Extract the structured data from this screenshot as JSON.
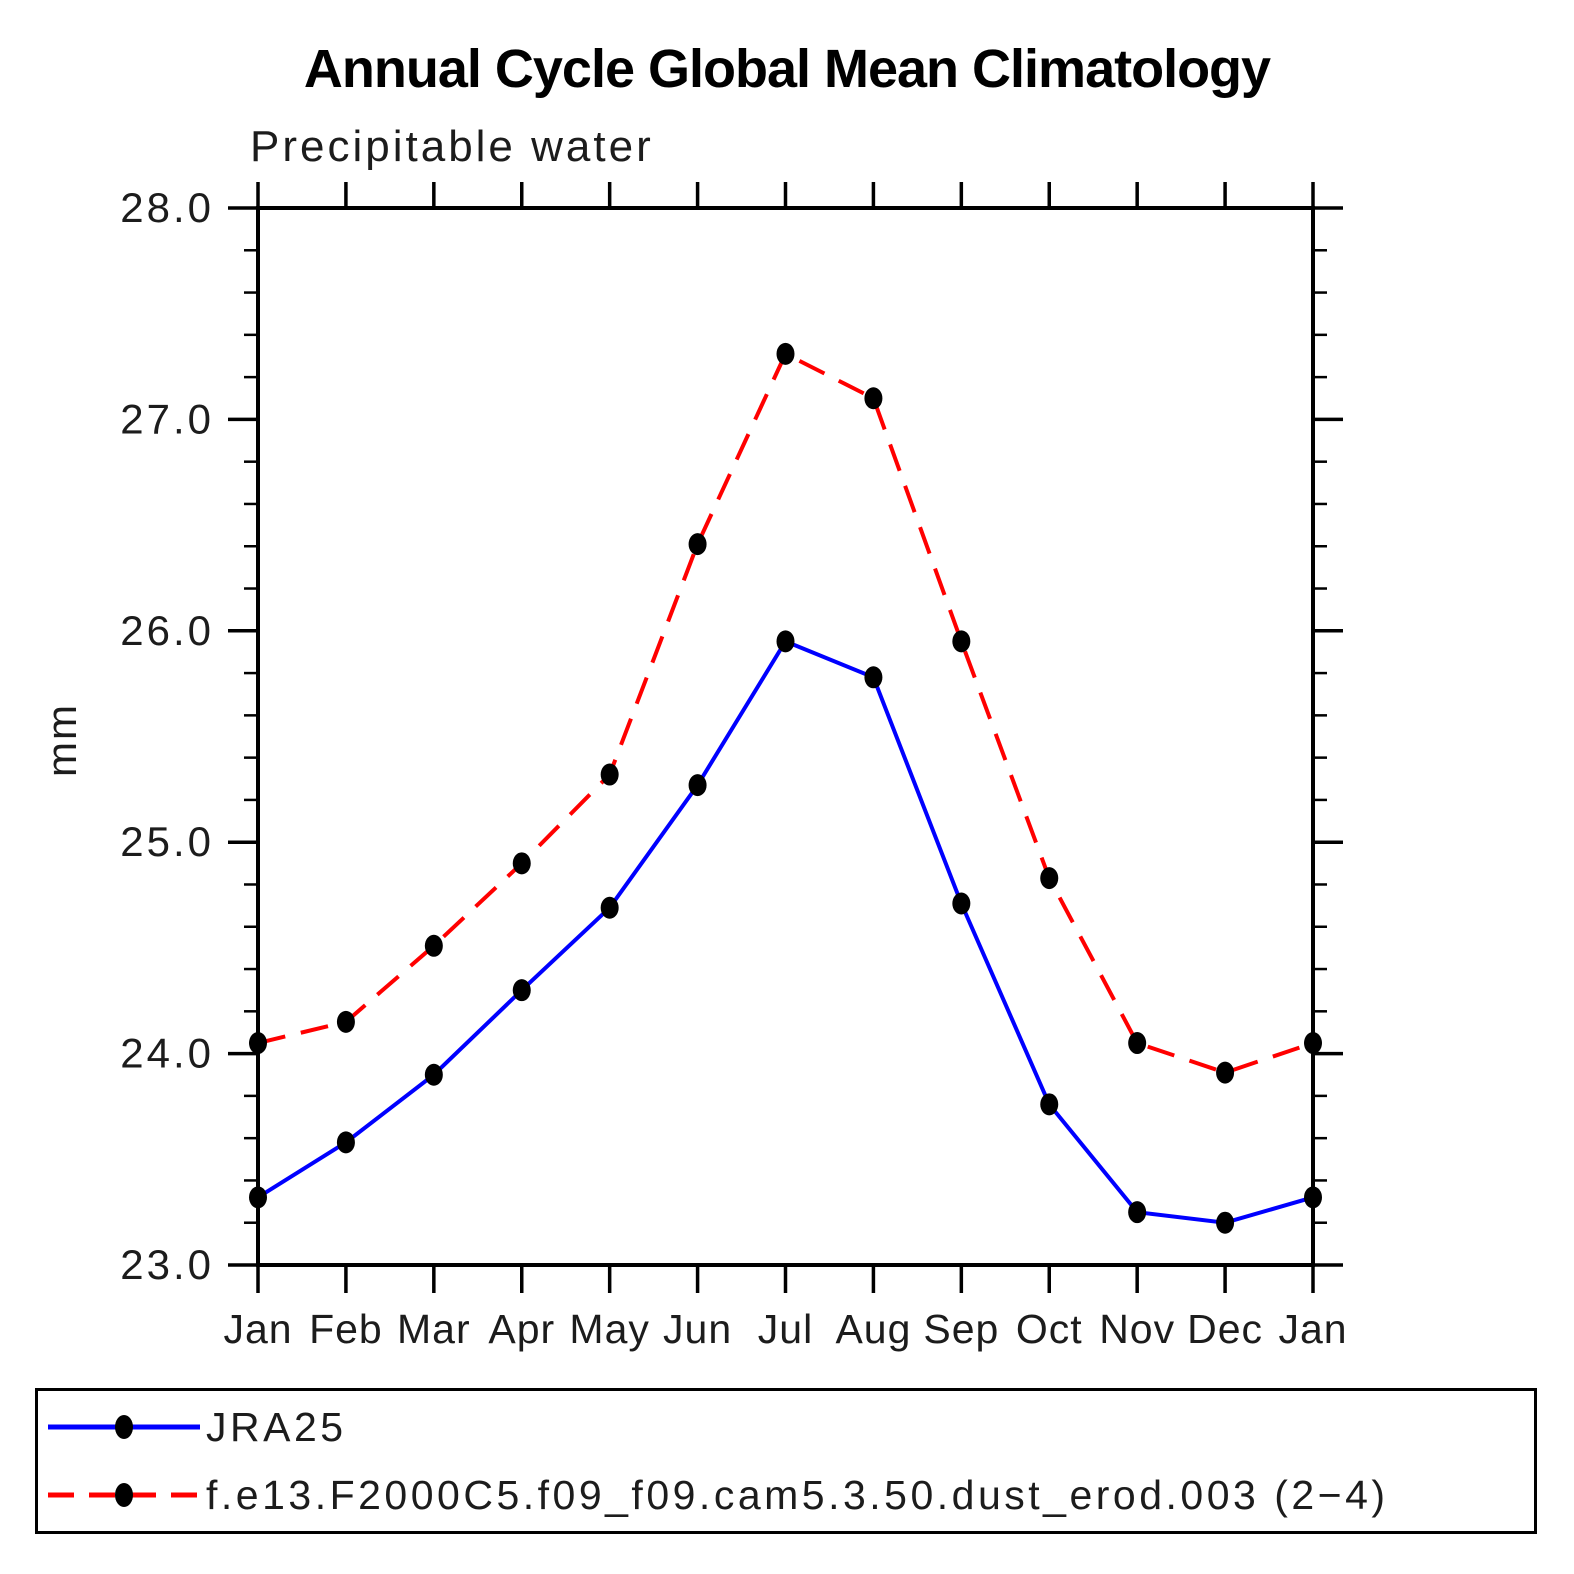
{
  "chart_data": {
    "type": "line",
    "title": "Annual Cycle Global Mean Climatology",
    "subtitle": "Precipitable water",
    "xlabel": "",
    "ylabel": "mm",
    "categories": [
      "Jan",
      "Feb",
      "Mar",
      "Apr",
      "May",
      "Jun",
      "Jul",
      "Aug",
      "Sep",
      "Oct",
      "Nov",
      "Dec",
      "Jan"
    ],
    "ylim": [
      23.0,
      28.0
    ],
    "ytick_major_step": 1.0,
    "ytick_minor_step": 0.2,
    "ytick_labels": [
      "23.0",
      "24.0",
      "25.0",
      "26.0",
      "27.0",
      "28.0"
    ],
    "grid": false,
    "legend_position": "bottom",
    "frame_color": "#000000",
    "marker": "filled-black-dot",
    "series": [
      {
        "name": "JRA25",
        "color": "#0000ff",
        "line_style": "solid",
        "marker_color": "#000000",
        "values": [
          23.32,
          23.58,
          23.9,
          24.3,
          24.69,
          25.27,
          25.95,
          25.78,
          24.71,
          23.76,
          23.25,
          23.2,
          23.32
        ]
      },
      {
        "name": "f.e13.F2000C5.f09_f09.cam5.3.50.dust_erod.003 (2−4)",
        "color": "#ff0000",
        "line_style": "dashed",
        "marker_color": "#000000",
        "values": [
          24.05,
          24.15,
          24.51,
          24.9,
          25.32,
          26.41,
          27.31,
          27.1,
          25.95,
          24.83,
          24.05,
          23.91,
          24.05
        ]
      }
    ]
  }
}
